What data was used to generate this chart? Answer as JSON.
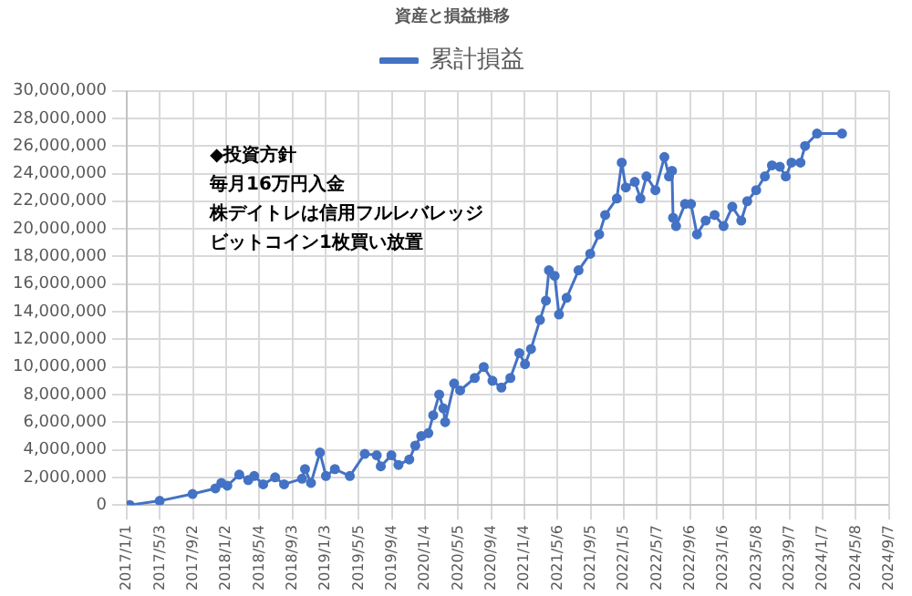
{
  "chart_data": {
    "type": "line",
    "title": "資産と損益推移",
    "x": [
      "2017-01-12",
      "2017-05-02",
      "2017-08-31",
      "2017-11-23",
      "2017-12-15",
      "2018-01-06",
      "2018-02-19",
      "2018-03-24",
      "2018-04-15",
      "2018-05-18",
      "2018-07-01",
      "2018-08-03",
      "2018-10-08",
      "2018-10-19",
      "2018-11-10",
      "2018-12-13",
      "2019-01-04",
      "2019-02-06",
      "2019-04-02",
      "2019-05-27",
      "2019-07-10",
      "2019-07-25",
      "2019-09-02",
      "2019-09-28",
      "2019-11-07",
      "2019-11-29",
      "2019-12-21",
      "2020-01-16",
      "2020-02-03",
      "2020-02-25",
      "2020-03-11",
      "2020-03-18",
      "2020-04-20",
      "2020-05-12",
      "2020-07-05",
      "2020-08-07",
      "2020-09-08",
      "2020-10-11",
      "2020-11-13",
      "2020-12-16",
      "2021-01-06",
      "2021-01-28",
      "2021-03-02",
      "2021-03-24",
      "2021-04-04",
      "2021-04-25",
      "2021-05-11",
      "2021-06-08",
      "2021-07-22",
      "2021-09-03",
      "2021-10-06",
      "2021-10-28",
      "2021-12-10",
      "2021-12-28",
      "2022-01-12",
      "2022-02-14",
      "2022-03-07",
      "2022-03-29",
      "2022-05-01",
      "2022-06-03",
      "2022-06-20",
      "2022-07-01",
      "2022-07-05",
      "2022-07-16",
      "2022-08-18",
      "2022-09-09",
      "2022-10-01",
      "2022-11-02",
      "2022-12-05",
      "2023-01-07",
      "2023-02-08",
      "2023-03-13",
      "2023-04-04",
      "2023-05-07",
      "2023-06-08",
      "2023-07-04",
      "2023-08-02",
      "2023-08-24",
      "2023-09-14",
      "2023-10-17",
      "2023-11-03",
      "2023-12-17",
      "2024-03-18"
    ],
    "series": [
      {
        "name": "累計損益",
        "color": "#4472c4",
        "values": [
          0,
          300000,
          800000,
          1200000,
          1600000,
          1400000,
          2200000,
          1800000,
          2100000,
          1500000,
          2000000,
          1500000,
          1900000,
          2600000,
          1600000,
          3800000,
          2100000,
          2600000,
          2100000,
          3700000,
          3600000,
          2800000,
          3600000,
          2900000,
          3300000,
          4300000,
          5000000,
          5200000,
          6500000,
          8000000,
          7000000,
          6000000,
          8800000,
          8300000,
          9200000,
          10000000,
          9000000,
          8500000,
          9200000,
          11000000,
          10200000,
          11300000,
          13400000,
          14800000,
          17000000,
          16600000,
          13800000,
          15000000,
          17000000,
          18200000,
          19600000,
          21000000,
          22200000,
          24800000,
          23000000,
          23400000,
          22200000,
          23800000,
          22800000,
          25200000,
          23800000,
          24200000,
          20800000,
          20200000,
          21800000,
          21800000,
          19600000,
          20600000,
          21000000,
          20200000,
          21600000,
          20600000,
          22000000,
          22800000,
          23800000,
          24600000,
          24500000,
          23800000,
          24800000,
          24800000,
          26000000,
          26900000,
          26900000
        ]
      }
    ],
    "xlim": [
      "2017-01-01",
      "2024-09-07"
    ],
    "xticks": [
      {
        "value": "2017-01-01",
        "label": "2017/1/1"
      },
      {
        "value": "2017-05-03",
        "label": "2017/5/3"
      },
      {
        "value": "2017-09-02",
        "label": "2017/9/2"
      },
      {
        "value": "2018-01-02",
        "label": "2018/1/2"
      },
      {
        "value": "2018-05-04",
        "label": "2018/5/4"
      },
      {
        "value": "2018-09-03",
        "label": "2018/9/3"
      },
      {
        "value": "2019-01-03",
        "label": "2019/1/3"
      },
      {
        "value": "2019-05-05",
        "label": "2019/5/5"
      },
      {
        "value": "2019-09-04",
        "label": "2019/9/4"
      },
      {
        "value": "2020-01-04",
        "label": "2020/1/4"
      },
      {
        "value": "2020-05-05",
        "label": "2020/5/5"
      },
      {
        "value": "2020-09-04",
        "label": "2020/9/4"
      },
      {
        "value": "2021-01-04",
        "label": "2021/1/4"
      },
      {
        "value": "2021-05-06",
        "label": "2021/5/6"
      },
      {
        "value": "2021-09-05",
        "label": "2021/9/5"
      },
      {
        "value": "2022-01-05",
        "label": "2022/1/5"
      },
      {
        "value": "2022-05-07",
        "label": "2022/5/7"
      },
      {
        "value": "2022-09-06",
        "label": "2022/9/6"
      },
      {
        "value": "2023-01-06",
        "label": "2023/1/6"
      },
      {
        "value": "2023-05-08",
        "label": "2023/5/8"
      },
      {
        "value": "2023-09-07",
        "label": "2023/9/7"
      },
      {
        "value": "2024-01-07",
        "label": "2024/1/7"
      },
      {
        "value": "2024-05-08",
        "label": "2024/5/8"
      },
      {
        "value": "2024-09-07",
        "label": "2024/9/7"
      }
    ],
    "ylim": [
      0,
      30000000
    ],
    "yticks": [
      {
        "value": 0,
        "label": "0"
      },
      {
        "value": 2000000,
        "label": "2,000,000"
      },
      {
        "value": 4000000,
        "label": "4,000,000"
      },
      {
        "value": 6000000,
        "label": "6,000,000"
      },
      {
        "value": 8000000,
        "label": "8,000,000"
      },
      {
        "value": 10000000,
        "label": "10,000,000"
      },
      {
        "value": 12000000,
        "label": "12,000,000"
      },
      {
        "value": 14000000,
        "label": "14,000,000"
      },
      {
        "value": 16000000,
        "label": "16,000,000"
      },
      {
        "value": 18000000,
        "label": "18,000,000"
      },
      {
        "value": 20000000,
        "label": "20,000,000"
      },
      {
        "value": 22000000,
        "label": "22,000,000"
      },
      {
        "value": 24000000,
        "label": "24,000,000"
      },
      {
        "value": 26000000,
        "label": "26,000,000"
      },
      {
        "value": 28000000,
        "label": "28,000,000"
      },
      {
        "value": 30000000,
        "label": "30,000,000"
      }
    ],
    "annotations": [
      "◆投資方針",
      "毎月16万円入金",
      "株デイトレは信用フルレバレッジ",
      "ビットコイン1枚買い放置"
    ],
    "grid": true,
    "legend": "top",
    "marker": "circle",
    "line_style": "solid"
  }
}
